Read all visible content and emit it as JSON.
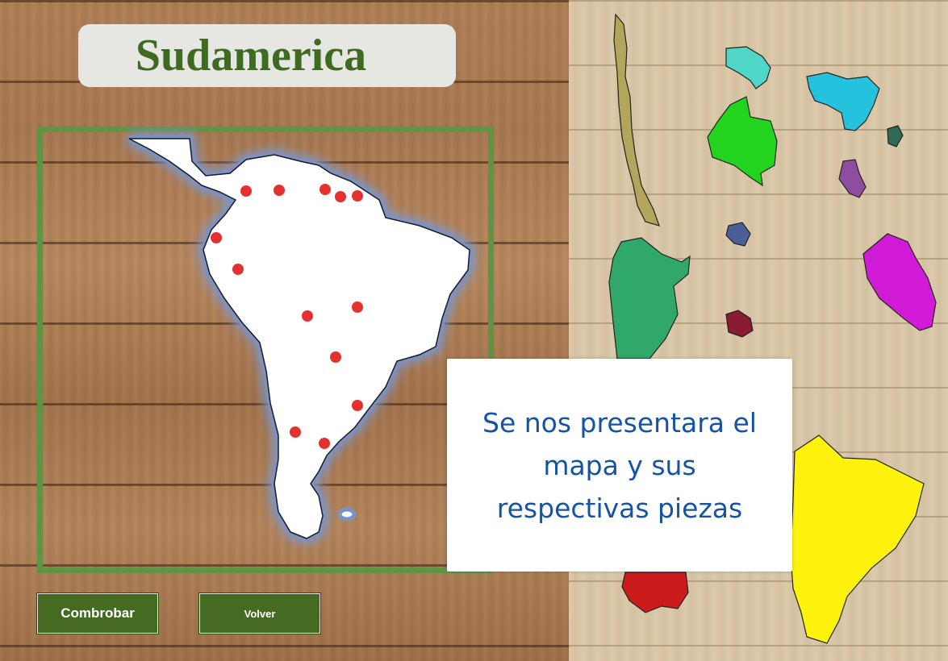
{
  "title": "Sudamerica",
  "buttons": {
    "check_label": "Combrobar",
    "back_label": "Volver"
  },
  "info_message": "Se nos presentara el mapa y sus respectivas piezas",
  "colors": {
    "title_text": "#3f6a22",
    "frame_border": "#5f9443",
    "button_bg": "#456b22",
    "marker": "#e53030",
    "message_text": "#1553a5"
  },
  "pieces": [
    {
      "name": "chile",
      "color": "#b3a65a"
    },
    {
      "name": "paraguay",
      "color": "#4ed6c7"
    },
    {
      "name": "venezuela",
      "color": "#25c2dd"
    },
    {
      "name": "colombia",
      "color": "#22d41e"
    },
    {
      "name": "guyana",
      "color": "#8e4ea0"
    },
    {
      "name": "suriname",
      "color": "#2e6a56"
    },
    {
      "name": "ecuador",
      "color": "#4a5f95"
    },
    {
      "name": "peru",
      "color": "#d11bd7"
    },
    {
      "name": "argentina",
      "color": "#2fa86a"
    },
    {
      "name": "uruguay",
      "color": "#8a1b32"
    },
    {
      "name": "brazil",
      "color": "#fff20d"
    },
    {
      "name": "bolivia",
      "color": "#cc1b1b"
    }
  ]
}
